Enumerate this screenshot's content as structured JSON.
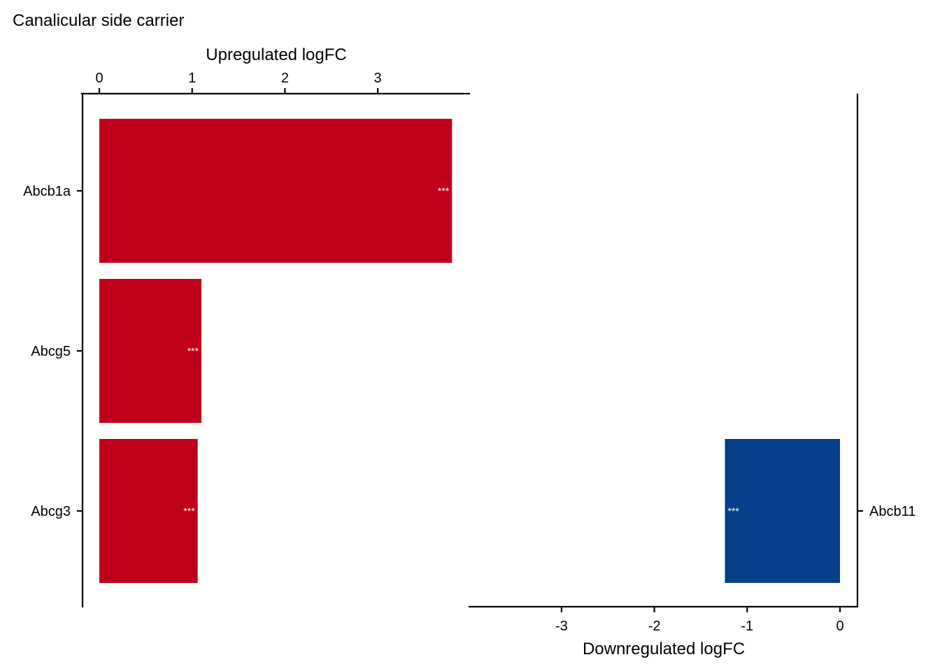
{
  "chart_data": {
    "type": "bar",
    "orientation": "horizontal",
    "title": "Canalicular side carrier",
    "colors": {
      "up": "#BE001A",
      "down": "#07408A",
      "label_on_bar": "#FFFFFF"
    },
    "up": {
      "xlabel": "Upregulated logFC",
      "axis_position": "top",
      "xlim": [
        0,
        3.8
      ],
      "ticks": [
        0,
        1,
        2,
        3
      ],
      "tick_labels": [
        "0",
        "1",
        "2",
        "3"
      ],
      "categories": [
        "Abcb1a",
        "Abcg5",
        "Abcg3"
      ],
      "values": [
        3.8,
        1.1,
        1.06
      ],
      "significance": [
        "***",
        "***",
        "***"
      ]
    },
    "down": {
      "xlabel": "Downregulated logFC",
      "axis_position": "bottom",
      "xlim": [
        -3.8,
        0
      ],
      "ticks": [
        -3,
        -2,
        -1,
        0
      ],
      "tick_labels": [
        "-3",
        "-2",
        "-1",
        "0"
      ],
      "categories": [
        "Abcb11"
      ],
      "values": [
        -1.24
      ],
      "significance": [
        "***"
      ]
    }
  }
}
